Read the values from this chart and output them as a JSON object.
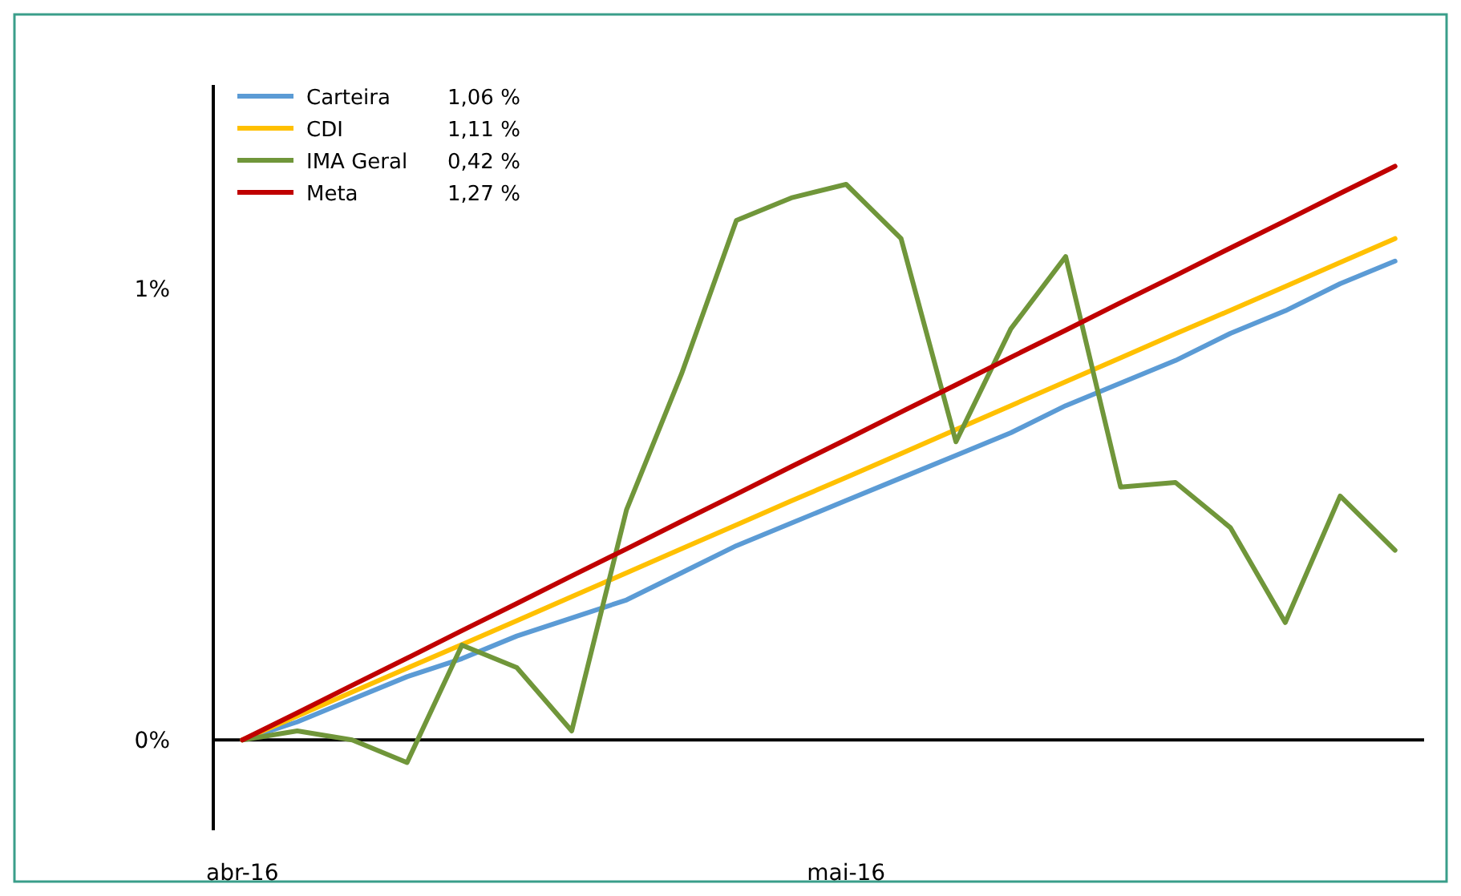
{
  "chart_data": {
    "type": "line",
    "categories": [
      "abr-16",
      null,
      null,
      null,
      null,
      null,
      null,
      null,
      null,
      null,
      null,
      "mai-16",
      null,
      null,
      null,
      null,
      null,
      null,
      null,
      null,
      null,
      null
    ],
    "ylim": [
      -0.2,
      1.45
    ],
    "yticks": [
      {
        "value": 0,
        "label": "0%"
      },
      {
        "value": 1,
        "label": "1%"
      }
    ],
    "legend": "top left",
    "marker": "none",
    "line_style": "solid",
    "annotations": [
      "1,06 %",
      "1,11 %",
      "0,42 %",
      "1,27 %"
    ],
    "series": [
      {
        "name": "Carteira",
        "color": "#5b9bd5",
        "values": [
          0,
          0.04,
          0.09,
          0.14,
          0.18,
          0.23,
          0.27,
          0.31,
          0.37,
          0.43,
          0.48,
          0.53,
          0.58,
          0.63,
          0.68,
          0.74,
          0.79,
          0.84,
          0.9,
          0.95,
          1.01,
          1.06
        ]
      },
      {
        "name": "CDI",
        "color": "#ffc000",
        "values": [
          0,
          0.053,
          0.106,
          0.159,
          0.211,
          0.264,
          0.317,
          0.37,
          0.423,
          0.476,
          0.529,
          0.581,
          0.634,
          0.687,
          0.74,
          0.793,
          0.846,
          0.899,
          0.951,
          1.004,
          1.057,
          1.11
        ]
      },
      {
        "name": "IMA Geral",
        "color": "#70963a",
        "values": [
          0,
          0.02,
          0,
          -0.05,
          0.21,
          0.16,
          0.02,
          0.51,
          0.81,
          1.15,
          1.2,
          1.23,
          1.11,
          0.66,
          0.91,
          1.07,
          0.56,
          0.57,
          0.47,
          0.26,
          0.54,
          0.42
        ]
      },
      {
        "name": "Meta",
        "color": "#c00000",
        "values": [
          0,
          0.06,
          0.121,
          0.181,
          0.242,
          0.302,
          0.363,
          0.423,
          0.484,
          0.544,
          0.605,
          0.665,
          0.726,
          0.786,
          0.847,
          0.907,
          0.968,
          1.028,
          1.089,
          1.149,
          1.21,
          1.27
        ]
      }
    ]
  }
}
